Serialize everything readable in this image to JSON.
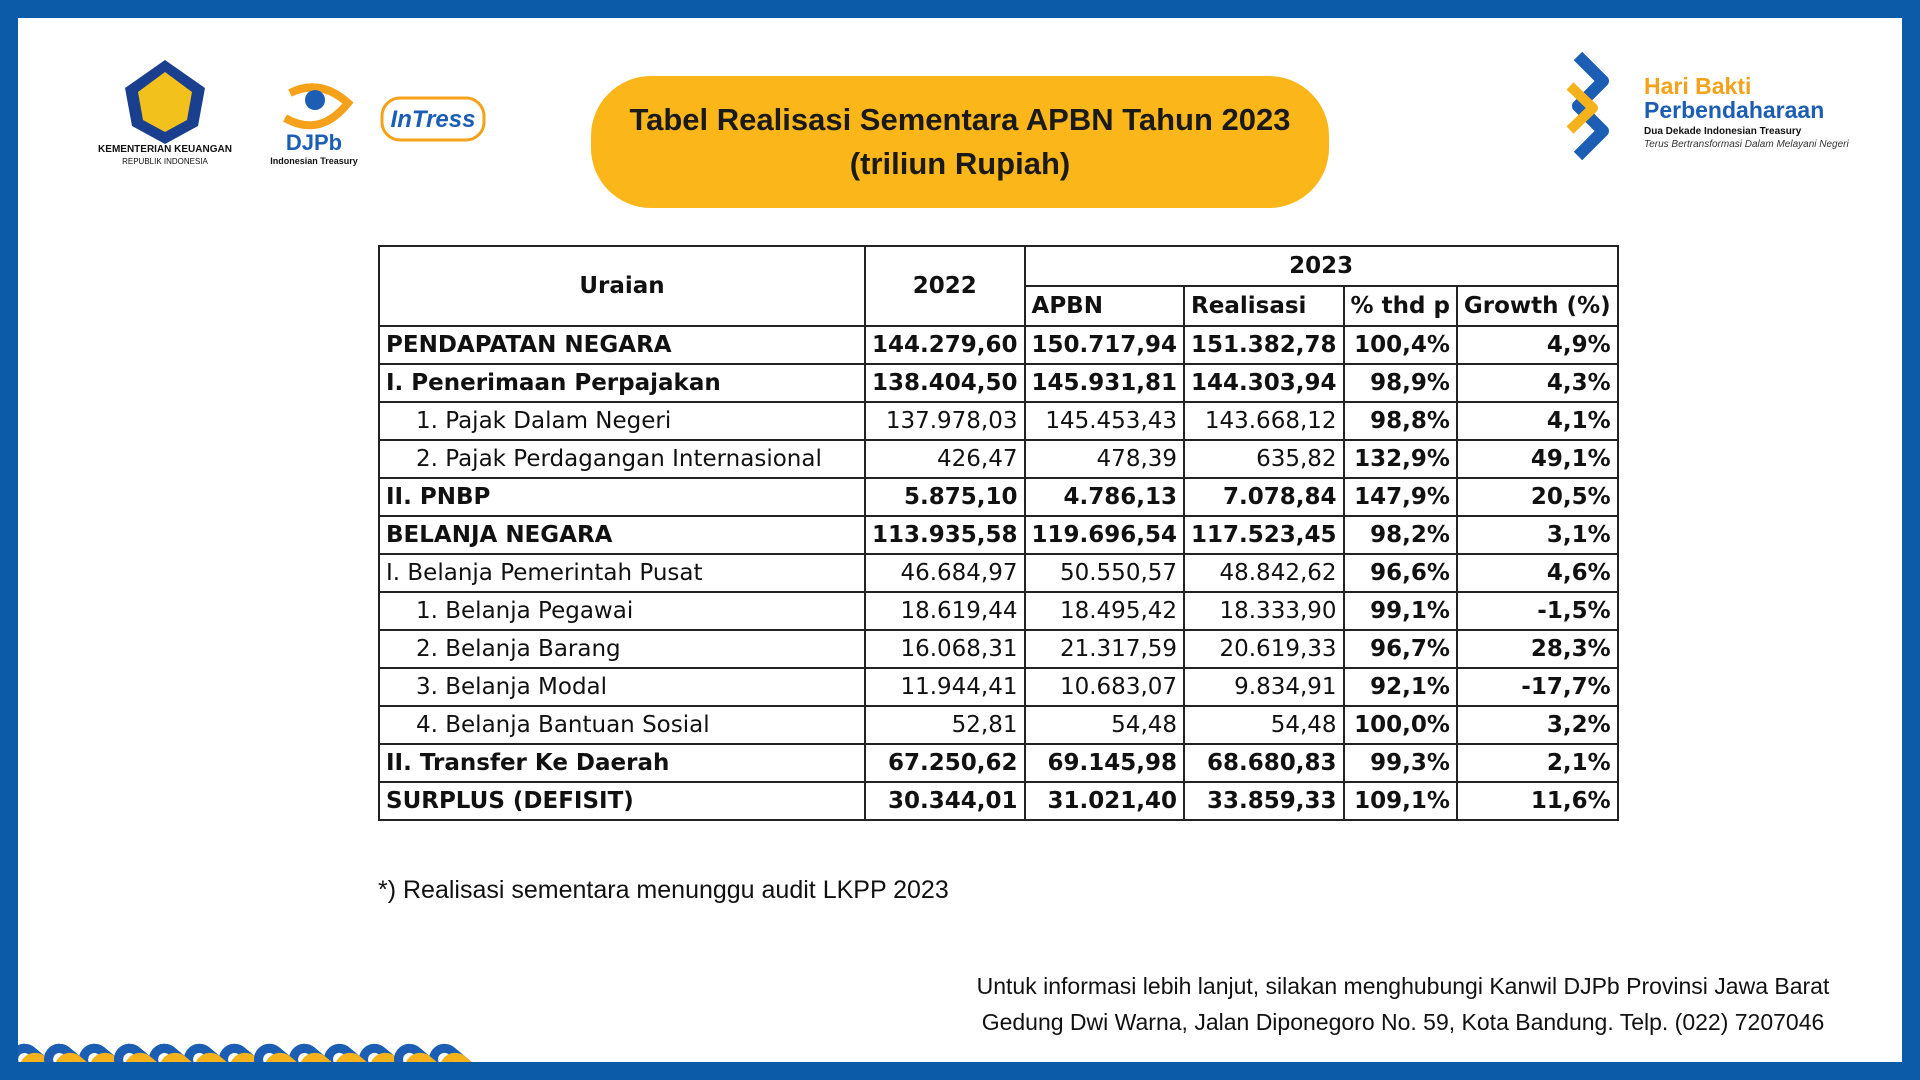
{
  "logos": {
    "kemenkeu": [
      "KEMENTERIAN KEUANGAN",
      "REPUBLIK INDONESIA"
    ],
    "djpb": [
      "DJPb",
      "Indonesian Treasury"
    ],
    "intress": "InTress"
  },
  "header": {
    "title": [
      "Tabel Realisasi Sementara APBN Tahun 2023",
      "(triliun Rupiah)"
    ]
  },
  "brand": {
    "title": [
      "Hari Bakti",
      "Perbendaharaan"
    ],
    "tagline": [
      "Dua Dekade Indonesian Treasury",
      "Terus Bertransformasi Dalam Melayani Negeri"
    ]
  },
  "table": {
    "header": {
      "uraian": "Uraian",
      "y2022": "2022",
      "y2023": "2023",
      "sub": [
        "APBN",
        "Realisasi",
        "% thd p",
        "Growth (%)"
      ]
    },
    "rows": [
      [
        "PENDAPATAN NEGARA",
        "144.279,60",
        "150.717,94",
        "151.382,78",
        "100,4%",
        "4,9%"
      ],
      [
        "I.  Penerimaan Perpajakan",
        "138.404,50",
        "145.931,81",
        "144.303,94",
        "98,9%",
        "4,3%"
      ],
      [
        "1. Pajak Dalam Negeri",
        "137.978,03",
        "145.453,43",
        "143.668,12",
        "98,8%",
        "4,1%"
      ],
      [
        "2. Pajak Perdagangan Internasional",
        "426,47",
        "478,39",
        "635,82",
        "132,9%",
        "49,1%"
      ],
      [
        "II.  PNBP",
        "5.875,10",
        "4.786,13",
        "7.078,84",
        "147,9%",
        "20,5%"
      ],
      [
        "BELANJA NEGARA",
        "113.935,58",
        "119.696,54",
        "117.523,45",
        "98,2%",
        "3,1%"
      ],
      [
        "I.  Belanja Pemerintah Pusat",
        "46.684,97",
        "50.550,57",
        "48.842,62",
        "96,6%",
        "4,6%"
      ],
      [
        "1. Belanja Pegawai",
        "18.619,44",
        "18.495,42",
        "18.333,90",
        "99,1%",
        "-1,5%"
      ],
      [
        "2. Belanja Barang",
        "16.068,31",
        "21.317,59",
        "20.619,33",
        "96,7%",
        "28,3%"
      ],
      [
        "3. Belanja Modal",
        "11.944,41",
        "10.683,07",
        "9.834,91",
        "92,1%",
        "-17,7%"
      ],
      [
        "4. Belanja Bantuan Sosial",
        "52,81",
        "54,48",
        "54,48",
        "100,0%",
        "3,2%"
      ],
      [
        "II. Transfer Ke Daerah",
        "67.250,62",
        "69.145,98",
        "68.680,83",
        "99,3%",
        "2,1%"
      ],
      [
        "SURPLUS (DEFISIT)",
        "30.344,01",
        "31.021,40",
        "33.859,33",
        "109,1%",
        "11,6%"
      ]
    ]
  },
  "footnote": "*) Realisasi sementara menunggu audit LKPP 2023",
  "contact": [
    "Untuk informasi lebih lanjut, silakan menghubungi Kanwil DJPb Provinsi Jawa Barat",
    "Gedung Dwi Warna, Jalan Diponegoro No. 59, Kota Bandung. Telp. (022) 7207046"
  ]
}
